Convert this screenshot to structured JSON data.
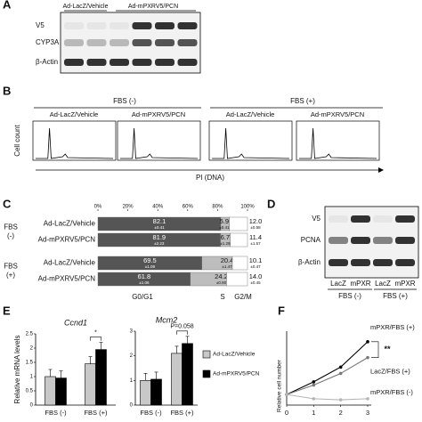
{
  "panel_labels": [
    "A",
    "B",
    "C",
    "D",
    "E",
    "F"
  ],
  "panel_a": {
    "columns": [
      "Ad-LacZ/Vehicle",
      "Ad-mPXRV5/PCN"
    ],
    "rows": [
      "V5",
      "CYP3A",
      "β-Actin"
    ]
  },
  "panel_b": {
    "groups": [
      "FBS (-)",
      "FBS (+)"
    ],
    "conditions": [
      "Ad-LacZ/Vehicle",
      "Ad-mPXRV5/PCN",
      "Ad-LacZ/Vehicle",
      "Ad-mPXRV5/PCN"
    ],
    "y_label": "Cell count",
    "x_label": "PI (DNA)"
  },
  "panel_d": {
    "rows": [
      "V5",
      "PCNA",
      "β-Actin"
    ],
    "lanes": [
      "LacZ",
      "mPXR",
      "LacZ",
      "mPXR"
    ],
    "groups": [
      "FBS (-)",
      "FBS (+)"
    ]
  },
  "chart_data": [
    {
      "type": "stacked-bar-h",
      "groups": [
        [
          "FBS",
          "(-)"
        ],
        [
          "FBS",
          "(+)"
        ]
      ],
      "categories": [
        "Ad-LacZ/Vehicle",
        "Ad-mPXRV5/PCN",
        "Ad-LacZ/Vehicle",
        "Ad-mPXRV5/PCN"
      ],
      "series": [
        {
          "name": "G0/G1",
          "color": "#555555",
          "values": [
            82.1,
            81.9,
            69.5,
            61.8
          ],
          "error_labels": [
            "±0.41",
            "±2.23",
            "±1.09",
            "±1.06"
          ]
        },
        {
          "name": "S",
          "color": "#bdbdbd",
          "values": [
            5.9,
            6.7,
            20.4,
            24.2
          ],
          "error_labels": [
            "±0.41",
            "±1.29",
            "±1.47",
            "±0.90"
          ]
        },
        {
          "name": "G2/M",
          "color": "#ffffff",
          "values": [
            12.0,
            11.4,
            10.1,
            14.0
          ],
          "value_labels": [
            "12.0",
            "11.4",
            "10.1",
            "14.0"
          ],
          "error_labels": [
            "±0.58",
            "±1.57",
            "±0.47",
            "±0.45"
          ]
        }
      ],
      "xlim": [
        0,
        100
      ],
      "xticks": [
        {
          "value": 0,
          "label": "0%"
        },
        {
          "value": 20,
          "label": "20%"
        },
        {
          "value": 40,
          "label": "40%"
        },
        {
          "value": 60,
          "label": "60%"
        },
        {
          "value": 80,
          "label": "80%"
        },
        {
          "value": 100,
          "label": "100%"
        }
      ]
    },
    {
      "type": "bar",
      "title": "Ccnd1",
      "y_label": "Relative mRNA levels",
      "categories": [
        "FBS (-)",
        "FBS (+)"
      ],
      "series": [
        {
          "color": "#c8c8c8",
          "values": [
            1.0,
            1.45
          ]
        },
        {
          "color": "#000000",
          "values": [
            0.95,
            1.95
          ]
        }
      ],
      "ylim": [
        0,
        2.5
      ],
      "yticks": [
        0,
        0.5,
        1,
        1.5,
        2,
        2.5
      ],
      "annotation": "*"
    },
    {
      "type": "bar",
      "title": "Mcm2",
      "categories": [
        "FBS (-)",
        "FBS (+)"
      ],
      "series": [
        {
          "name": "Ad-LacZ/Vehicle",
          "color": "#c8c8c8",
          "values": [
            1.0,
            2.1
          ]
        },
        {
          "name": "Ad-mPXRV5/PCN",
          "color": "#000000",
          "values": [
            1.05,
            2.5
          ]
        }
      ],
      "ylim": [
        0,
        3
      ],
      "yticks": [
        0,
        1,
        2,
        3
      ],
      "annotation": "P=0.058"
    },
    {
      "type": "line",
      "y_label": "Relative cell number",
      "x": [
        0,
        1,
        2,
        3
      ],
      "xlim": [
        0,
        3
      ],
      "xticks": [
        0,
        1,
        2,
        3
      ],
      "ylim": [
        0,
        7
      ],
      "series": [
        {
          "name": "mPXR/FBS (+)",
          "color": "#000000",
          "values": [
            1,
            2.2,
            3.6,
            6.0
          ]
        },
        {
          "name": "LacZ/FBS (+)",
          "color": "#777777",
          "values": [
            1,
            1.9,
            3.0,
            4.5
          ]
        },
        {
          "name": "mPXR/FBS (-)",
          "color": "#b5b5b5",
          "values": [
            1,
            0.6,
            0.5,
            0.6
          ]
        }
      ],
      "annotation": "**"
    }
  ]
}
